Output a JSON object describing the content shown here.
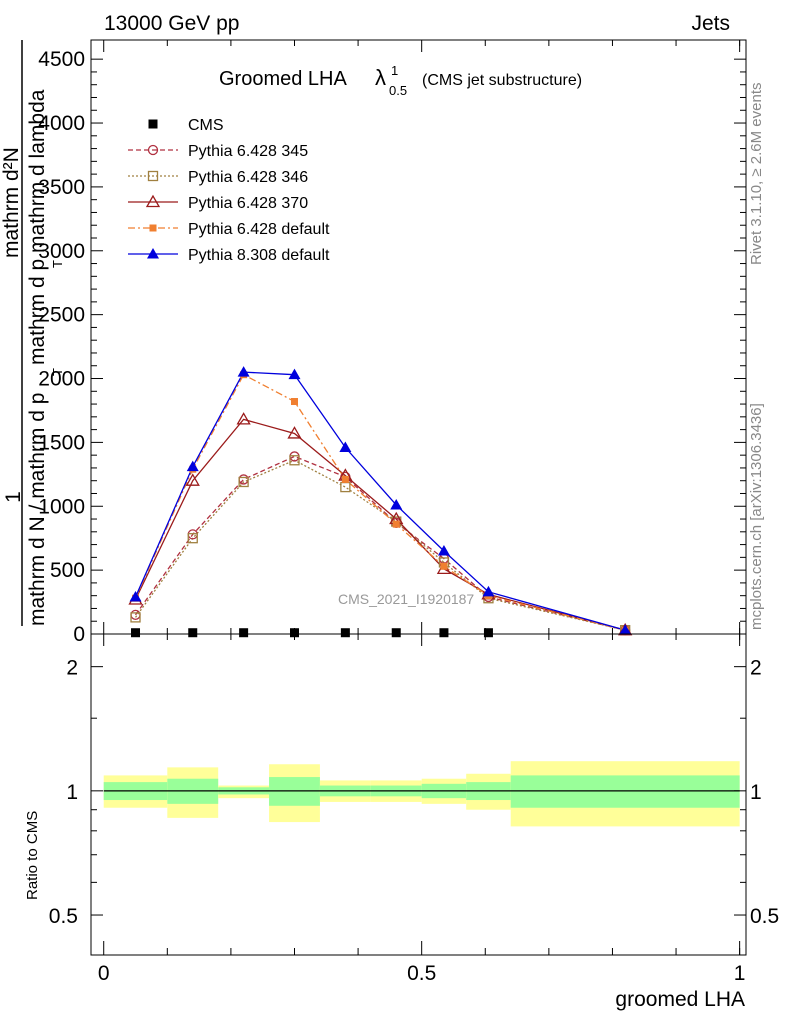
{
  "header": {
    "left": "13000 GeV pp",
    "right": "Jets"
  },
  "side_labels": {
    "rivet": "Rivet 3.1.10, ≥ 2.6M events",
    "mcplots": "mcplots.cern.ch [arXiv:1306.3436]"
  },
  "colors": {
    "CMS": "#000000",
    "p345": "#b03040",
    "p346": "#a08040",
    "p370": "#9b1b1b",
    "p6def": "#f07f30",
    "p8def": "#0000dd",
    "band_inner": "#99ff99",
    "band_outer": "#ffff99"
  },
  "chart_data": {
    "type": "line",
    "title_main": "Groomed LHA",
    "title_lambda": "λ",
    "title_sup": "1",
    "title_sub": "0.5",
    "title_note": "(CMS jet substructure)",
    "watermark": "CMS_2021_I1920187",
    "xlabel": "groomed LHA",
    "ylabel": {
      "numer_one": "1",
      "numer_dN": "mathrm d²N",
      "line_c": "mathrm d²N",
      "line_b": "mathrm d N / mathrm d p",
      "line_a": "mathrm d p mathrm d lambda",
      "sub_T": "T"
    },
    "xlim": [
      -0.02,
      1.01
    ],
    "ylim": [
      0,
      4650
    ],
    "xticks": [
      0,
      0.5,
      1
    ],
    "xtick_labels": [
      "0",
      "0.5",
      "1"
    ],
    "yticks": [
      0,
      500,
      1000,
      1500,
      2000,
      2500,
      3000,
      3500,
      4000,
      4500
    ],
    "ytick_labels": [
      "0",
      "500",
      "1000",
      "1500",
      "2000",
      "2500",
      "3000",
      "3500",
      "4000",
      "4500"
    ],
    "legend_position": "top-left",
    "x": [
      0.05,
      0.14,
      0.22,
      0.3,
      0.38,
      0.46,
      0.535,
      0.605,
      0.82
    ],
    "series": [
      {
        "name": "CMS",
        "key": "CMS",
        "marker": "square",
        "line": "none",
        "values": [
          10,
          10,
          10,
          10,
          10,
          10,
          10,
          10,
          0
        ]
      },
      {
        "name": "Pythia 6.428 345",
        "key": "p345",
        "marker": "circle-open",
        "line": "dashed",
        "values": [
          150,
          780,
          1210,
          1390,
          1230,
          870,
          590,
          290,
          30
        ]
      },
      {
        "name": "Pythia 6.428 346",
        "key": "p346",
        "marker": "square-open",
        "line": "dotted",
        "values": [
          130,
          750,
          1190,
          1360,
          1150,
          880,
          560,
          280,
          30
        ]
      },
      {
        "name": "Pythia 6.428 370",
        "key": "p370",
        "marker": "triangle-open",
        "line": "solid",
        "values": [
          270,
          1200,
          1680,
          1570,
          1240,
          900,
          510,
          310,
          30
        ]
      },
      {
        "name": "Pythia 6.428 default",
        "key": "p6def",
        "marker": "square-filled-small",
        "line": "dashdot",
        "values": [
          280,
          1290,
          2030,
          1820,
          1210,
          860,
          530,
          300,
          30
        ]
      },
      {
        "name": "Pythia 8.308 default",
        "key": "p8def",
        "marker": "triangle-filled",
        "line": "solid",
        "values": [
          290,
          1310,
          2050,
          2030,
          1460,
          1010,
          650,
          330,
          30
        ]
      }
    ],
    "ratio": {
      "ylabel": "Ratio to CMS",
      "ylim": [
        0.4,
        2.4
      ],
      "yticks": [
        0.5,
        1,
        2
      ],
      "ytick_labels": [
        "0.5",
        "1",
        "2"
      ],
      "reference": 1,
      "bins": [
        {
          "x0": 0.0,
          "x1": 0.1,
          "inner": [
            0.95,
            1.05
          ],
          "outer": [
            0.91,
            1.09
          ]
        },
        {
          "x0": 0.1,
          "x1": 0.18,
          "inner": [
            0.93,
            1.07
          ],
          "outer": [
            0.86,
            1.14
          ]
        },
        {
          "x0": 0.18,
          "x1": 0.26,
          "inner": [
            0.98,
            1.02
          ],
          "outer": [
            0.96,
            1.03
          ]
        },
        {
          "x0": 0.26,
          "x1": 0.34,
          "inner": [
            0.92,
            1.08
          ],
          "outer": [
            0.84,
            1.16
          ]
        },
        {
          "x0": 0.34,
          "x1": 0.42,
          "inner": [
            0.97,
            1.03
          ],
          "outer": [
            0.94,
            1.06
          ]
        },
        {
          "x0": 0.42,
          "x1": 0.5,
          "inner": [
            0.97,
            1.03
          ],
          "outer": [
            0.94,
            1.06
          ]
        },
        {
          "x0": 0.5,
          "x1": 0.57,
          "inner": [
            0.96,
            1.04
          ],
          "outer": [
            0.93,
            1.07
          ]
        },
        {
          "x0": 0.57,
          "x1": 0.64,
          "inner": [
            0.95,
            1.05
          ],
          "outer": [
            0.9,
            1.1
          ]
        },
        {
          "x0": 0.64,
          "x1": 1.0,
          "inner": [
            0.91,
            1.09
          ],
          "outer": [
            0.82,
            1.18
          ]
        }
      ]
    }
  }
}
